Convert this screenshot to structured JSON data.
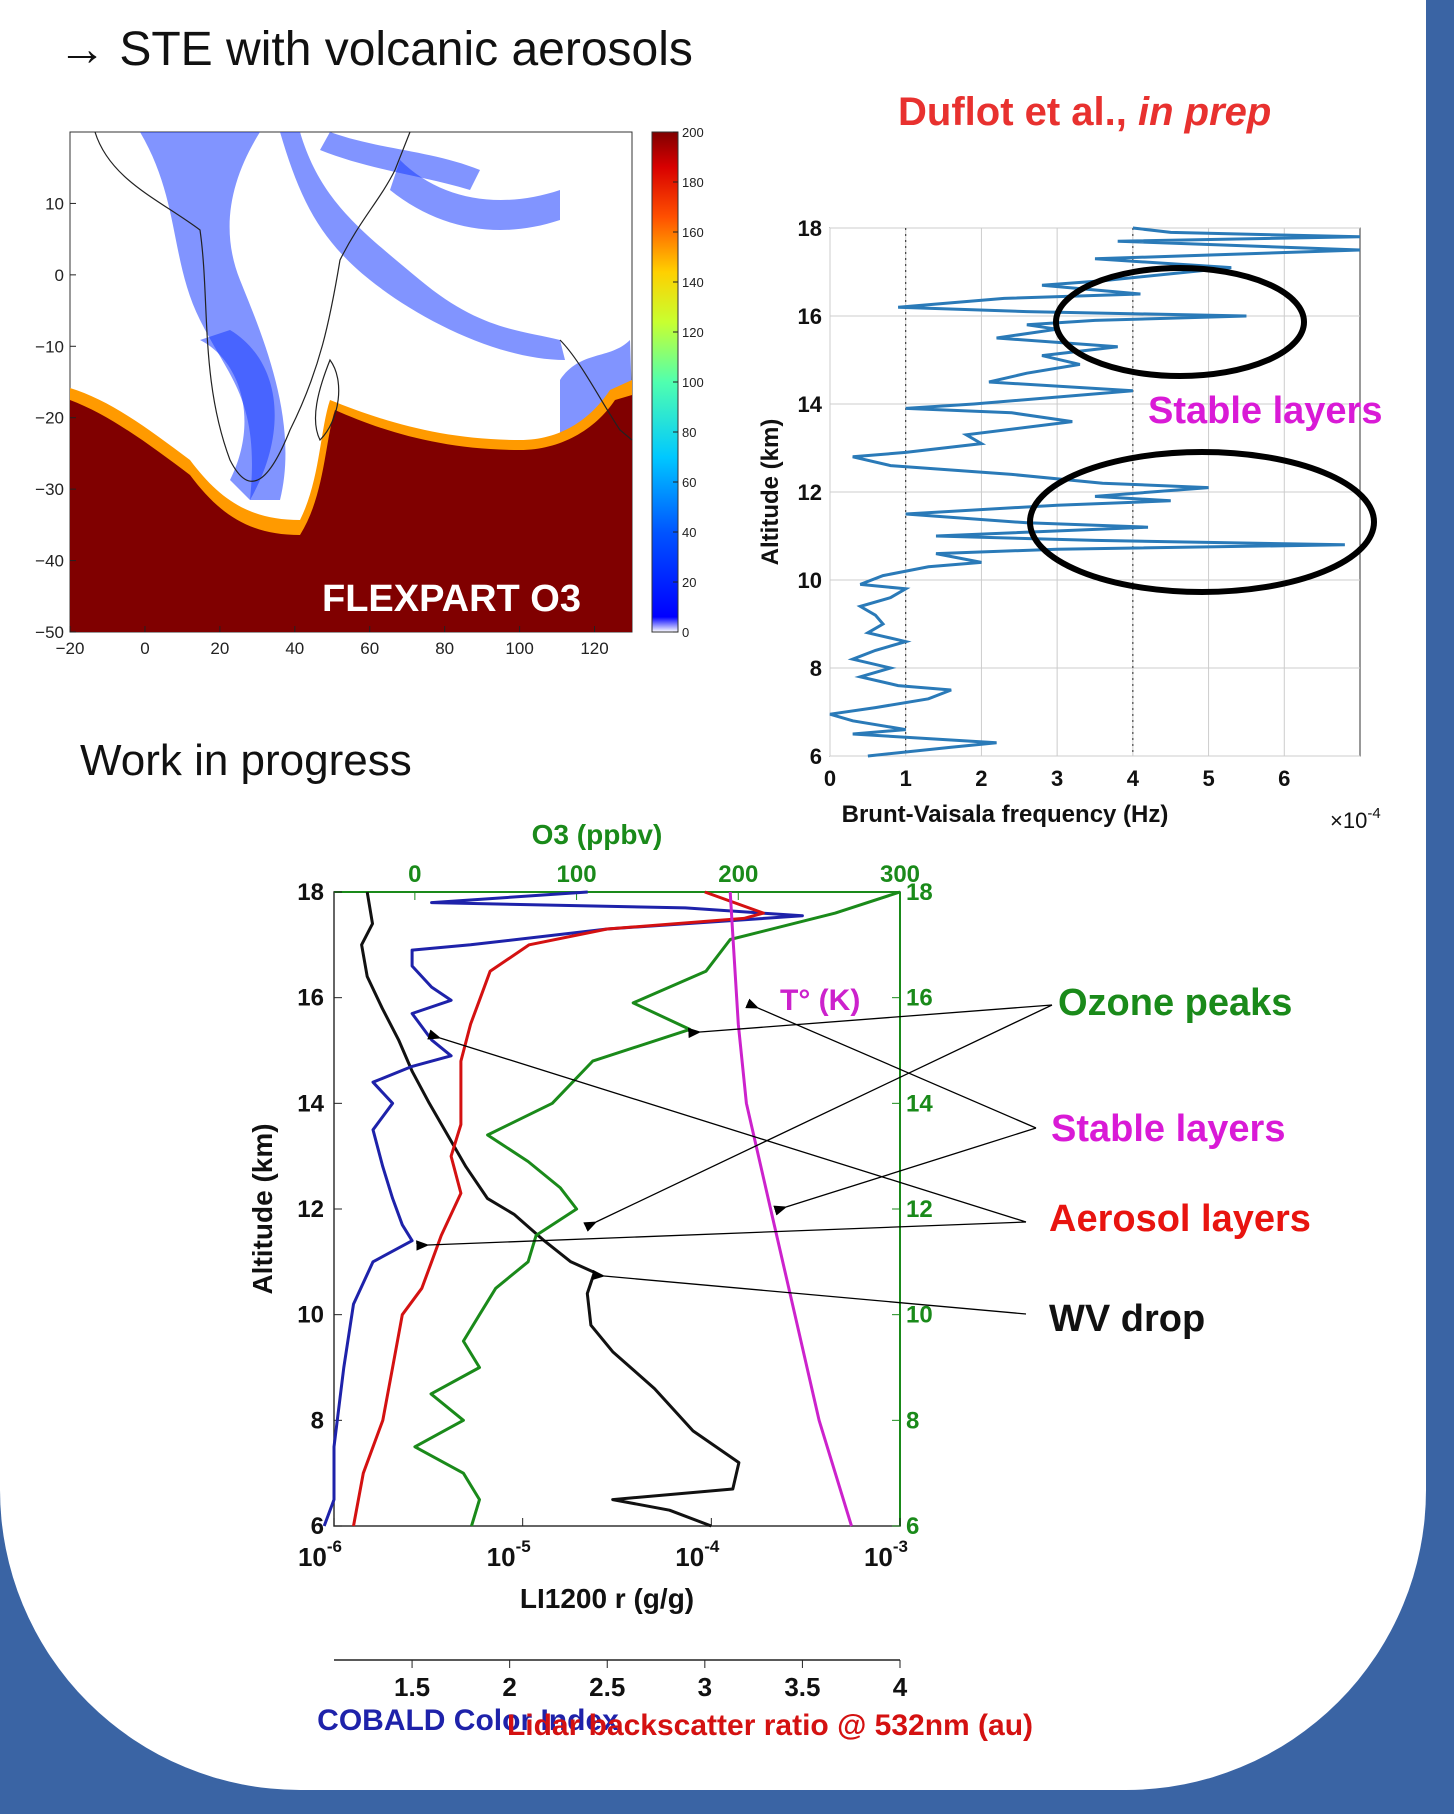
{
  "slide": {
    "title": "→ STE with volcanic aerosols",
    "citation_authors": "Duflot et al.,",
    "citation_status": "in prep",
    "wip": "Work in progress",
    "colors": {
      "frame": "#3a64a4",
      "citation": "#e8312f",
      "stable": "#d91ad6",
      "ozone": "#1a8a1a",
      "aerosol": "#e8140f"
    }
  },
  "map": {
    "label": "FLEXPART O3",
    "xticks": [
      "−20",
      "0",
      "20",
      "40",
      "60",
      "80",
      "100",
      "120"
    ],
    "yticks": [
      "10",
      "0",
      "−10",
      "−20",
      "−30",
      "−40",
      "−50"
    ],
    "colorbar_ticks": [
      "200",
      "180",
      "160",
      "140",
      "120",
      "100",
      "80",
      "60",
      "40",
      "20",
      "0"
    ]
  },
  "annotations": {
    "stable_layers_top": "Stable layers",
    "ozone_peaks": "Ozone peaks",
    "stable_layers": "Stable layers",
    "aerosol_layers": "Aerosol layers",
    "wv_drop": "WV drop",
    "temperature": "T° (K)"
  },
  "chart_data": [
    {
      "type": "map",
      "title": "FLEXPART O3",
      "xlim": [
        -20,
        130
      ],
      "ylim": [
        -50,
        20
      ],
      "colorbar": {
        "min": 0,
        "max": 200,
        "colormap": "jet"
      }
    },
    {
      "type": "line",
      "xlabel": "Brunt-Vaisala frequency (Hz)",
      "x_multiplier": "×10",
      "x_exponent": "-4",
      "ylabel": "Altitude (km)",
      "xlim": [
        0,
        7
      ],
      "ylim": [
        6,
        18
      ],
      "xticks": [
        0,
        1,
        2,
        3,
        4,
        5,
        6
      ],
      "yticks": [
        6,
        8,
        10,
        12,
        14,
        16,
        18
      ],
      "dotted_reference_lines_x": [
        1,
        4
      ],
      "series": [
        {
          "color": "#2a7ab8",
          "points": [
            [
              0.5,
              6.0
            ],
            [
              1.6,
              6.2
            ],
            [
              2.2,
              6.3
            ],
            [
              0.3,
              6.5
            ],
            [
              1.0,
              6.6
            ],
            [
              0.3,
              6.8
            ],
            [
              0.0,
              6.95
            ],
            [
              0.6,
              7.1
            ],
            [
              1.3,
              7.3
            ],
            [
              1.6,
              7.5
            ],
            [
              0.9,
              7.6
            ],
            [
              0.4,
              7.8
            ],
            [
              0.8,
              8.0
            ],
            [
              0.3,
              8.2
            ],
            [
              0.6,
              8.4
            ],
            [
              1.0,
              8.6
            ],
            [
              0.5,
              8.8
            ],
            [
              0.7,
              9.0
            ],
            [
              0.6,
              9.2
            ],
            [
              0.4,
              9.4
            ],
            [
              0.8,
              9.6
            ],
            [
              1.0,
              9.8
            ],
            [
              0.4,
              9.9
            ],
            [
              0.7,
              10.1
            ],
            [
              1.3,
              10.3
            ],
            [
              2.0,
              10.4
            ],
            [
              1.4,
              10.6
            ],
            [
              3.0,
              10.7
            ],
            [
              6.8,
              10.8
            ],
            [
              3.5,
              10.9
            ],
            [
              1.4,
              11.0
            ],
            [
              4.2,
              11.2
            ],
            [
              2.6,
              11.3
            ],
            [
              1.0,
              11.5
            ],
            [
              3.0,
              11.7
            ],
            [
              4.5,
              11.8
            ],
            [
              3.5,
              11.9
            ],
            [
              5.0,
              12.1
            ],
            [
              3.6,
              12.2
            ],
            [
              2.4,
              12.4
            ],
            [
              0.8,
              12.6
            ],
            [
              0.3,
              12.8
            ],
            [
              1.0,
              12.9
            ],
            [
              2.0,
              13.1
            ],
            [
              1.8,
              13.3
            ],
            [
              3.2,
              13.6
            ],
            [
              2.4,
              13.8
            ],
            [
              1.0,
              13.9
            ],
            [
              1.9,
              14.0
            ],
            [
              4.0,
              14.3
            ],
            [
              2.1,
              14.5
            ],
            [
              2.6,
              14.7
            ],
            [
              3.3,
              14.9
            ],
            [
              2.8,
              15.1
            ],
            [
              3.8,
              15.3
            ],
            [
              2.2,
              15.5
            ],
            [
              3.0,
              15.7
            ],
            [
              2.6,
              15.8
            ],
            [
              3.5,
              15.9
            ],
            [
              5.5,
              16.0
            ],
            [
              2.6,
              16.1
            ],
            [
              0.9,
              16.2
            ],
            [
              2.3,
              16.4
            ],
            [
              4.1,
              16.5
            ],
            [
              2.8,
              16.7
            ],
            [
              3.6,
              16.8
            ],
            [
              5.3,
              17.1
            ],
            [
              3.5,
              17.3
            ],
            [
              7.0,
              17.5
            ],
            [
              3.8,
              17.7
            ],
            [
              7.0,
              17.8
            ],
            [
              4.5,
              17.9
            ],
            [
              4.0,
              18.0
            ]
          ]
        }
      ]
    },
    {
      "type": "line",
      "ylabel": "Altitude (km)",
      "xlabel": "LI1200 r (g/g)",
      "top_axis_label": "O3 (ppbv)",
      "secondary_axis_label_1": "COBALD Color Index",
      "secondary_axis_label_2": "Lidar backscatter ratio @ 532nm (au)",
      "ylim": [
        6,
        18
      ],
      "yticks": [
        6,
        8,
        10,
        12,
        14,
        16,
        18
      ],
      "x_log_decades": [
        -6,
        -5,
        -4,
        -3
      ],
      "x_log_base": "10",
      "o3_xlim": [
        -50,
        300
      ],
      "o3_ticks": [
        0,
        100,
        200,
        300
      ],
      "cobald_lidar_xlim": [
        1.1,
        4.0
      ],
      "cobald_lidar_ticks": [
        "1.5",
        "2",
        "2.5",
        "3",
        "3.5",
        "4"
      ],
      "series": [
        {
          "color": "#111111",
          "points": [
            [
              1.5e-06,
              18
            ],
            [
              1.6e-06,
              17.4
            ],
            [
              1.4e-06,
              17
            ],
            [
              1.5e-06,
              16.4
            ],
            [
              1.8e-06,
              15.8
            ],
            [
              2.2e-06,
              15.2
            ],
            [
              2.6e-06,
              14.6
            ],
            [
              3.2e-06,
              14.0
            ],
            [
              4e-06,
              13.4
            ],
            [
              5e-06,
              12.8
            ],
            [
              6.5e-06,
              12.2
            ],
            [
              9e-06,
              11.9
            ],
            [
              1.3e-05,
              11.4
            ],
            [
              1.8e-05,
              11.0
            ],
            [
              2.4e-05,
              10.8
            ],
            [
              2.2e-05,
              10.4
            ],
            [
              2.3e-05,
              9.8
            ],
            [
              3e-05,
              9.3
            ],
            [
              5e-05,
              8.6
            ],
            [
              8e-05,
              7.8
            ],
            [
              0.00014,
              7.2
            ],
            [
              0.00013,
              6.7
            ],
            [
              3e-05,
              6.5
            ],
            [
              6e-05,
              6.3
            ],
            [
              0.0001,
              6.0
            ]
          ]
        },
        {
          "color": "#1e22aa",
          "points": [
            [
              2.4,
              18
            ],
            [
              1.6,
              17.8
            ],
            [
              2.9,
              17.7
            ],
            [
              3.5,
              17.55
            ],
            [
              2.5,
              17.3
            ],
            [
              1.8,
              17
            ],
            [
              1.5,
              16.9
            ],
            [
              1.5,
              16.6
            ],
            [
              1.6,
              16.2
            ],
            [
              1.7,
              15.95
            ],
            [
              1.5,
              15.7
            ],
            [
              1.6,
              15.2
            ],
            [
              1.7,
              14.9
            ],
            [
              1.5,
              14.7
            ],
            [
              1.3,
              14.4
            ],
            [
              1.4,
              14
            ],
            [
              1.3,
              13.5
            ],
            [
              1.35,
              12.8
            ],
            [
              1.4,
              12.2
            ],
            [
              1.45,
              11.7
            ],
            [
              1.5,
              11.4
            ],
            [
              1.3,
              11.0
            ],
            [
              1.2,
              10.2
            ],
            [
              1.15,
              9.0
            ],
            [
              1.1,
              7.5
            ],
            [
              1.1,
              6.5
            ],
            [
              1.05,
              6.0
            ]
          ]
        },
        {
          "color": "#d41111",
          "points": [
            [
              3.0,
              18
            ],
            [
              3.3,
              17.6
            ],
            [
              3.2,
              17.5
            ],
            [
              2.5,
              17.3
            ],
            [
              2.1,
              17
            ],
            [
              1.9,
              16.5
            ],
            [
              1.85,
              16
            ],
            [
              1.8,
              15.5
            ],
            [
              1.75,
              14.8
            ],
            [
              1.75,
              14.2
            ],
            [
              1.75,
              13.6
            ],
            [
              1.7,
              13.0
            ],
            [
              1.75,
              12.3
            ],
            [
              1.65,
              11.5
            ],
            [
              1.6,
              11.0
            ],
            [
              1.55,
              10.5
            ],
            [
              1.45,
              10.0
            ],
            [
              1.4,
              9.0
            ],
            [
              1.35,
              8.0
            ],
            [
              1.25,
              7.0
            ],
            [
              1.2,
              6.0
            ]
          ]
        },
        {
          "color": "#1a8a1a",
          "points": [
            [
              300,
              18
            ],
            [
              260,
              17.6
            ],
            [
              195,
              17.1
            ],
            [
              180,
              16.5
            ],
            [
              135,
              15.9
            ],
            [
              170,
              15.4
            ],
            [
              110,
              14.8
            ],
            [
              85,
              14.0
            ],
            [
              45,
              13.4
            ],
            [
              70,
              12.9
            ],
            [
              90,
              12.4
            ],
            [
              100,
              12.0
            ],
            [
              75,
              11.5
            ],
            [
              70,
              11.0
            ],
            [
              50,
              10.5
            ],
            [
              40,
              10.0
            ],
            [
              30,
              9.5
            ],
            [
              40,
              9.0
            ],
            [
              10,
              8.5
            ],
            [
              30,
              8.0
            ],
            [
              0,
              7.5
            ],
            [
              30,
              7.0
            ],
            [
              40,
              6.5
            ],
            [
              35,
              6.0
            ]
          ]
        },
        {
          "color": "#cc22cc",
          "points": [
            [
              270,
              6.0
            ],
            [
              250,
              8.0
            ],
            [
              235,
              10.0
            ],
            [
              220,
              12.0
            ],
            [
              205,
              14.0
            ],
            [
              200,
              15.5
            ],
            [
              197,
              17.0
            ],
            [
              195,
              18.0
            ]
          ]
        }
      ]
    }
  ]
}
